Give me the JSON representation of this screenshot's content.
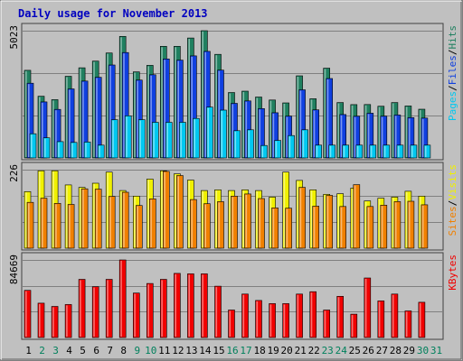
{
  "chart_data": {
    "type": "bar",
    "title": "Daily usage for November 2013",
    "categories": [
      "1",
      "2",
      "3",
      "4",
      "5",
      "6",
      "7",
      "8",
      "9",
      "10",
      "11",
      "12",
      "13",
      "14",
      "15",
      "16",
      "17",
      "18",
      "19",
      "20",
      "21",
      "22",
      "23",
      "24",
      "25",
      "26",
      "27",
      "28",
      "29",
      "30",
      "31"
    ],
    "weekend_days": [
      "2",
      "3",
      "9",
      "10",
      "16",
      "17",
      "23",
      "24",
      "30",
      "31"
    ],
    "panels": [
      {
        "name": "requests",
        "ylim": [
          0,
          5023
        ],
        "ytick_label": "5023",
        "legend": [
          "Pages",
          "Files",
          "Hits"
        ],
        "series": [
          {
            "name": "Hits",
            "color": "#208060",
            "values": [
              3459,
              2435,
              2303,
              3225,
              3558,
              3822,
              4143,
              4798,
              3398,
              3656,
              4405,
              4405,
              4733,
              5023,
              4089,
              2583,
              2635,
              2405,
              2287,
              2172,
              3242,
              2337,
              3544,
              2187,
              2106,
              2110,
              2040,
              2187,
              2052,
              1922,
              null
            ]
          },
          {
            "name": "Files",
            "color": "#1040e0",
            "values": [
              2951,
              2211,
              1918,
              2724,
              3035,
              3185,
              3669,
              4160,
              3076,
              3286,
              3907,
              3860,
              4029,
              4207,
              3468,
              2157,
              2250,
              1948,
              1783,
              1649,
              2690,
              1899,
              3135,
              1714,
              1646,
              1767,
              1649,
              1694,
              1592,
              1573,
              null
            ]
          },
          {
            "name": "Pages",
            "color": "#00c8f0",
            "values": [
              955,
              794,
              646,
              611,
              627,
              505,
              1510,
              1662,
              1509,
              1408,
              1408,
              1408,
              1562,
              2005,
              1887,
              1077,
              1111,
              490,
              690,
              882,
              1112,
              505,
              505,
              505,
              505,
              505,
              505,
              505,
              505,
              505,
              null
            ]
          }
        ]
      },
      {
        "name": "visitors",
        "ylim": [
          0,
          226
        ],
        "ytick_label": "226",
        "legend": [
          "Sites",
          "Visits"
        ],
        "series": [
          {
            "name": "Visits",
            "color": "#f0f000",
            "values": [
              163,
              223,
              223,
              182,
              175,
              187,
              219,
              166,
              150,
              199,
              223,
              214,
              196,
              166,
              168,
              166,
              168,
              166,
              147,
              219,
              195,
              168,
              155,
              157,
              173,
              136,
              144,
              147,
              164,
              150,
              null
            ]
          },
          {
            "name": "Sites",
            "color": "#f08000",
            "values": [
              132,
              144,
              129,
              126,
              171,
              170,
              149,
              161,
              123,
              142,
              221,
              209,
              140,
              128,
              134,
              150,
              156,
              143,
              116,
              115,
              175,
              121,
              152,
              120,
              183,
              120,
              124,
              134,
              135,
              125,
              null
            ]
          }
        ]
      },
      {
        "name": "kbytes",
        "ylim": [
          0,
          84669
        ],
        "ytick_label": "84669",
        "legend": [
          "KBytes"
        ],
        "series": [
          {
            "name": "KBytes",
            "color": "#f00000",
            "values": [
              51500,
              37500,
              34000,
              36000,
              63500,
              55500,
              63500,
              84669,
              48500,
              59000,
              63500,
              70000,
              69500,
              69500,
              56000,
              30000,
              47500,
              40500,
              37000,
              37000,
              47500,
              50000,
              30000,
              45000,
              25500,
              65000,
              40000,
              47500,
              29000,
              38500,
              null
            ]
          }
        ]
      }
    ]
  }
}
